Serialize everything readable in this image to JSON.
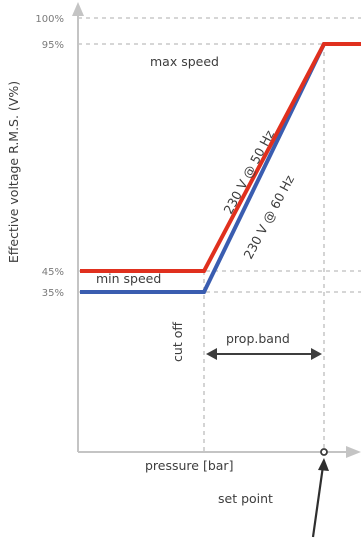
{
  "chart_data": {
    "type": "line",
    "title": "",
    "ylabel": "Effective voltage R.M.S. (V%)",
    "xlabel": "pressure [bar]",
    "y_ticks": [
      "100%",
      "95%",
      "45%",
      "35%"
    ],
    "y_tick_values": [
      100,
      95,
      45,
      35
    ],
    "x_markers": [
      "cut off",
      "set point"
    ],
    "series": [
      {
        "name": "230 V @ 50 Hz",
        "color": "#e0301e",
        "points": [
          [
            "start",
            45
          ],
          [
            "cut off",
            45
          ],
          [
            "set point",
            95
          ],
          [
            "end",
            95
          ]
        ]
      },
      {
        "name": "230 V @ 60 Hz",
        "color": "#3a5db0",
        "points": [
          [
            "start",
            35
          ],
          [
            "cut off",
            35
          ],
          [
            "set point",
            95
          ],
          [
            "end",
            95
          ]
        ]
      }
    ],
    "annotations": {
      "max_speed": "max speed",
      "min_speed": "min speed",
      "prop_band": "prop.band",
      "cut_off": "cut off",
      "set_point": "set point"
    },
    "grid": "dashed"
  }
}
